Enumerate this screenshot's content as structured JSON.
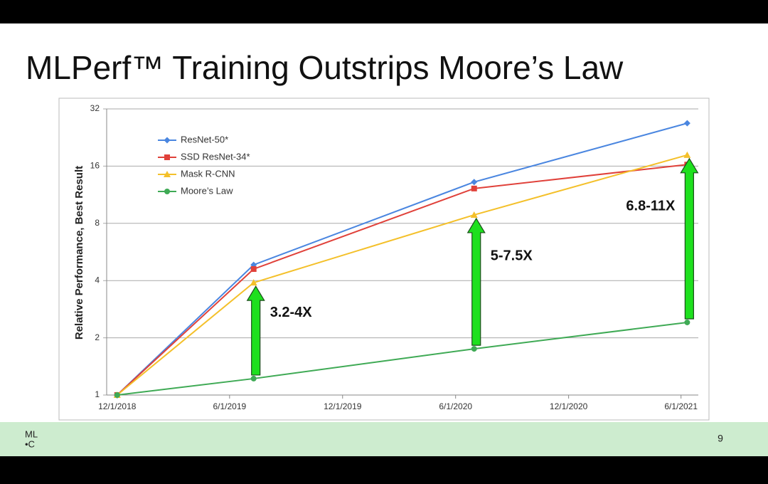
{
  "slide": {
    "title": "MLPerf™ Training Outstrips Moore’s Law",
    "logo": [
      "ML",
      "•C"
    ],
    "page_number": 9
  },
  "chart_data": {
    "type": "line",
    "y_label": "Relative Performance, Best Result",
    "x": [
      "12/1/2018",
      "7/10/2019",
      "7/1/2020",
      "6/11/2021"
    ],
    "xlim": [
      "11/14/2018",
      "6/29/2021"
    ],
    "xticks": [
      "12/1/2018",
      "6/1/2019",
      "12/1/2019",
      "6/1/2020",
      "12/1/2020",
      "6/1/2021"
    ],
    "ylim": [
      1,
      32
    ],
    "yticks": [
      1,
      2,
      4,
      8,
      16,
      32
    ],
    "log_scale": true,
    "grid": true,
    "legend": "upper left",
    "series": [
      {
        "name": "ResNet-50*",
        "color": "#4a86e0",
        "marker": "diamond",
        "values": [
          1,
          4.84,
          13.2,
          26.9
        ]
      },
      {
        "name": "SSD ResNet-34*",
        "color": "#e0413a",
        "marker": "square",
        "values": [
          1,
          4.6,
          12.2,
          16.3
        ]
      },
      {
        "name": "Mask R-CNN",
        "color": "#f4c02a",
        "marker": "triangle",
        "values": [
          1,
          3.9,
          8.86,
          18.3
        ]
      },
      {
        "name": "Moore’s Law",
        "color": "#3faa55",
        "marker": "circle",
        "values": [
          1,
          1.22,
          1.75,
          2.41
        ]
      }
    ],
    "annotations": [
      "3.2-4X",
      "5-7.5X",
      "6.8-11X"
    ]
  }
}
